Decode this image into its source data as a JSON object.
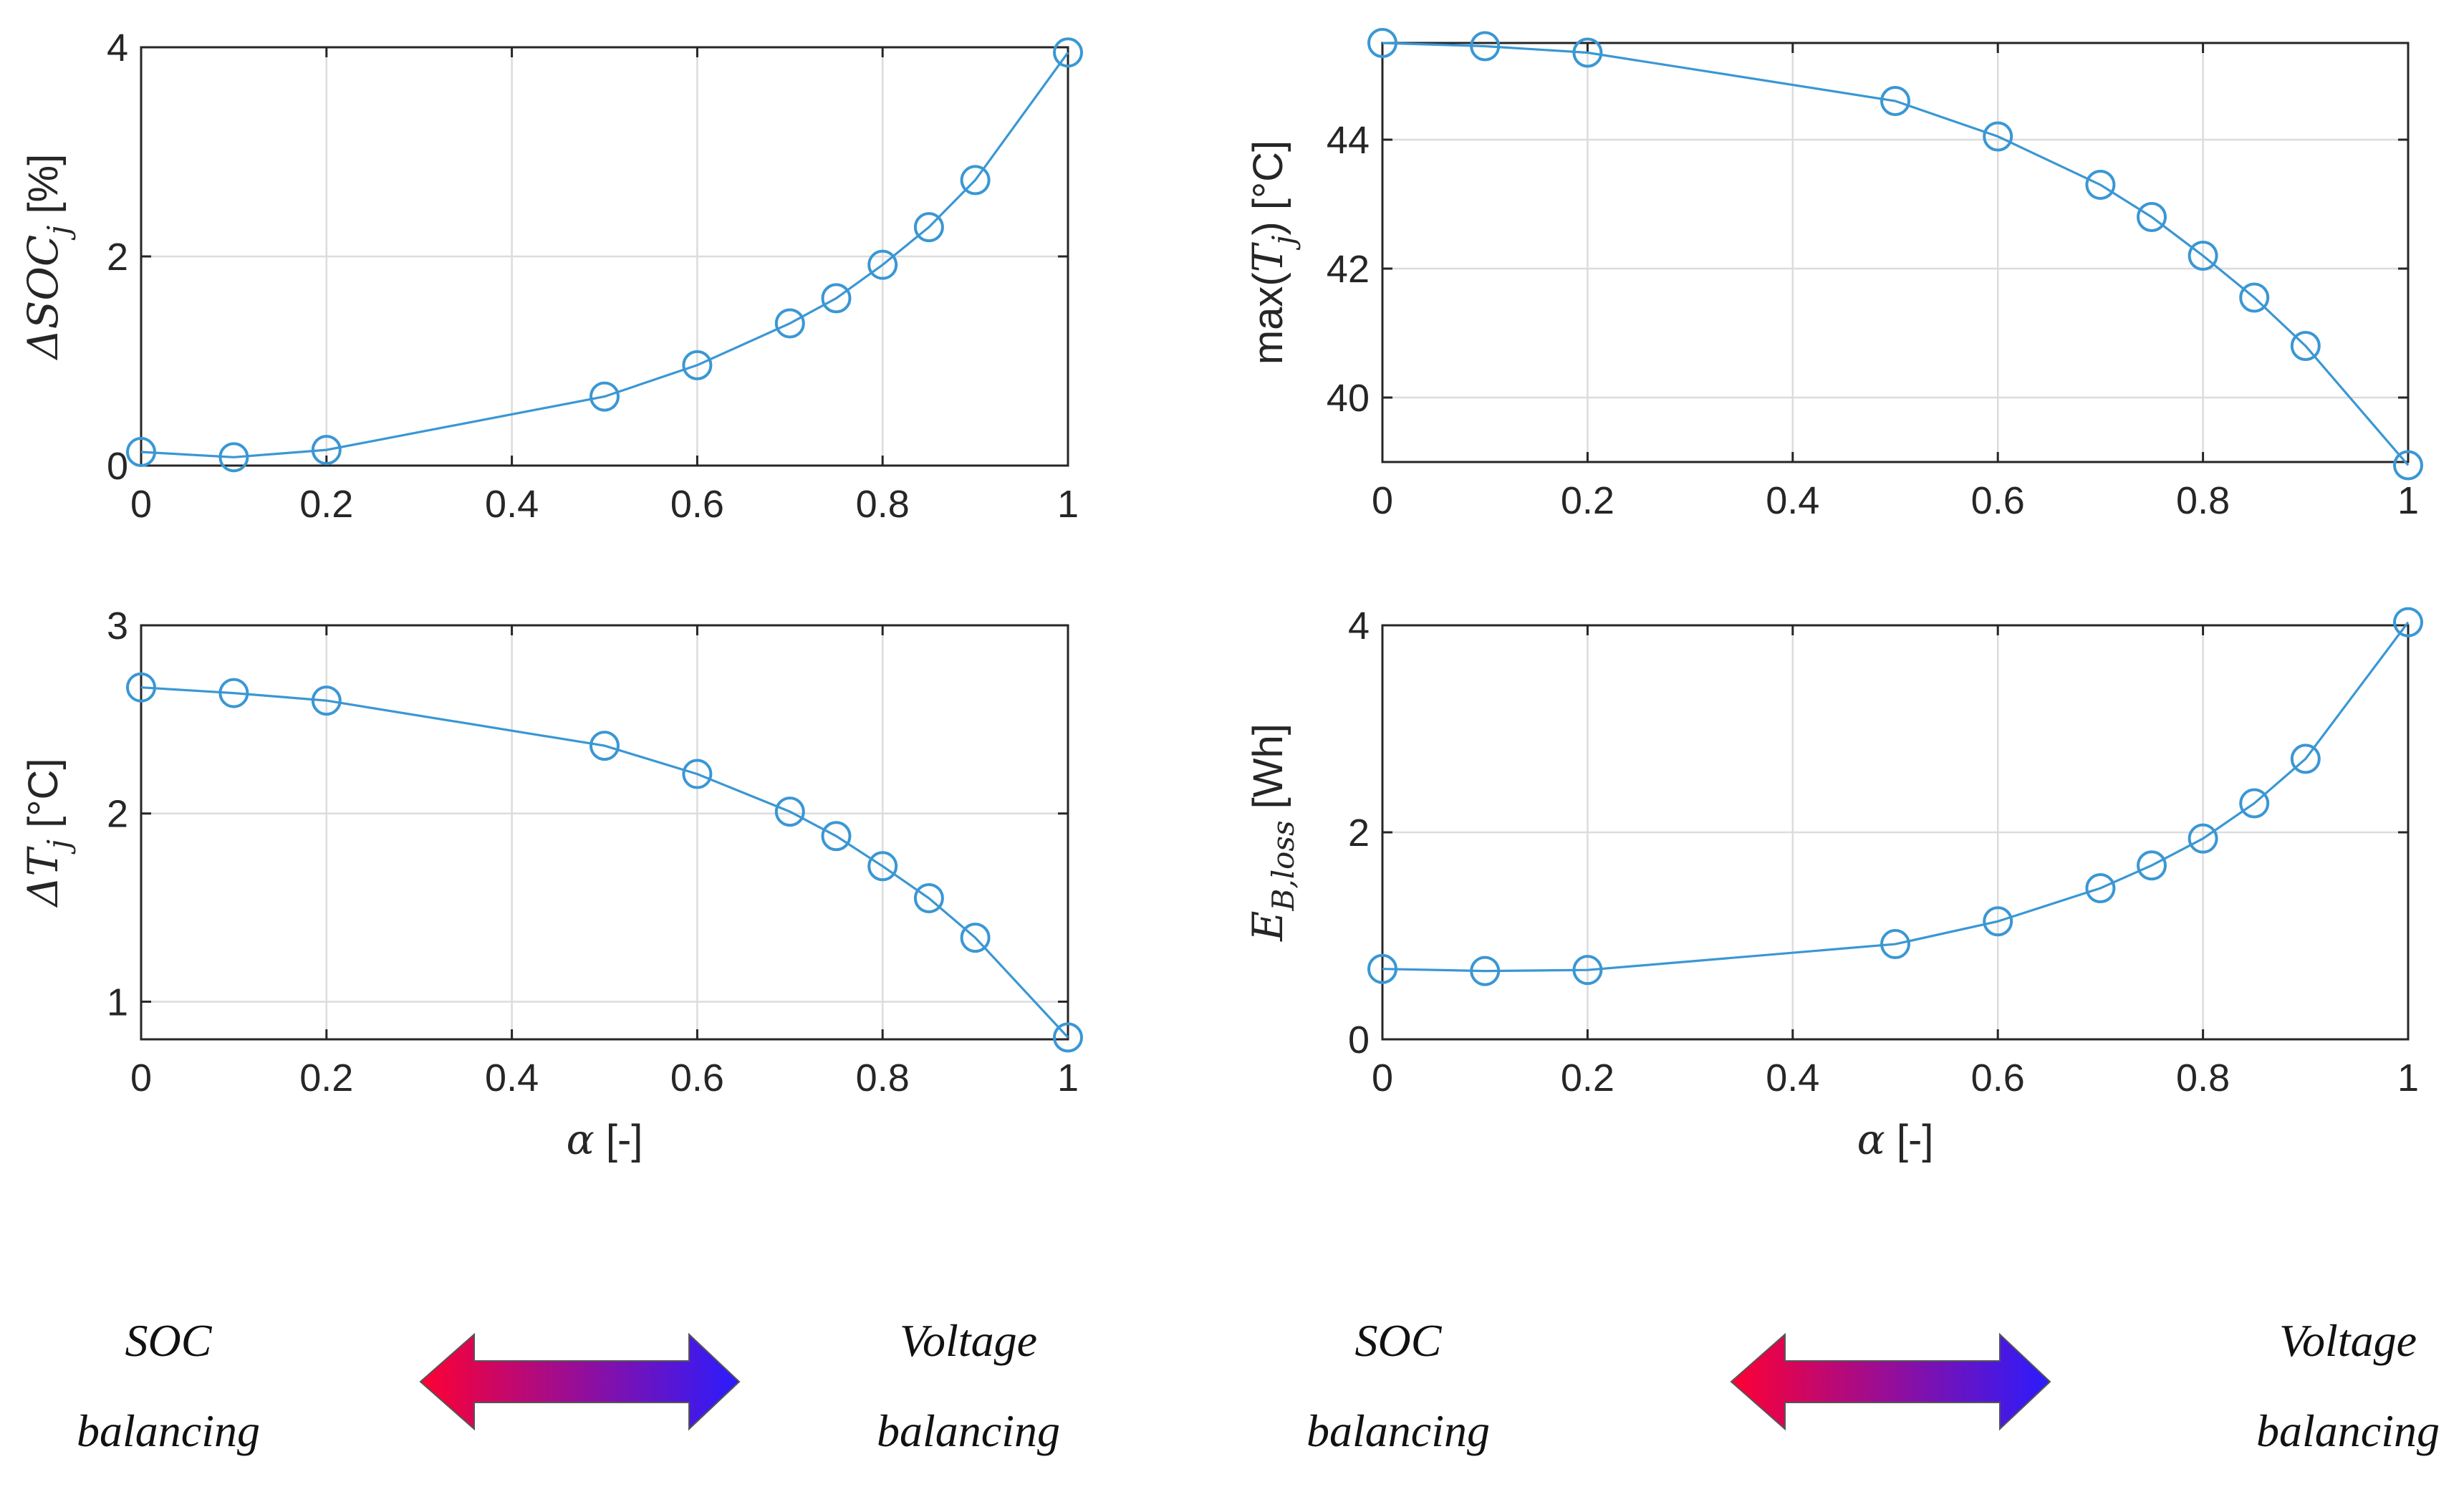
{
  "colors": {
    "series": "#3a97d4",
    "arrow_left": "#ff0033",
    "arrow_right": "#2a1cff"
  },
  "chart_data": [
    {
      "id": "dsoc",
      "type": "line",
      "ylabel_prefix": "ΔSOC",
      "ylabel_sub": "j",
      "ylabel_suffix": " [%]",
      "xlabel": "",
      "xlim": [
        0,
        1
      ],
      "ylim": [
        0,
        4
      ],
      "xticks": [
        "0",
        "0.2",
        "0.4",
        "0.6",
        "0.8",
        "1"
      ],
      "yticks": [
        "0",
        "2",
        "4"
      ],
      "x": [
        0,
        0.1,
        0.2,
        0.5,
        0.6,
        0.7,
        0.75,
        0.8,
        0.85,
        0.9,
        1
      ],
      "y": [
        0.13,
        0.08,
        0.15,
        0.66,
        0.96,
        1.36,
        1.6,
        1.92,
        2.28,
        2.73,
        3.95
      ]
    },
    {
      "id": "maxtj",
      "type": "line",
      "ylabel_prefix": "max(",
      "ylabel_sub": "j",
      "ylabel_suffix": ") [°C]",
      "ylabel_var": "T",
      "xlabel": "",
      "xlim": [
        0,
        1
      ],
      "ylim": [
        39,
        45.5
      ],
      "xticks": [
        "0",
        "0.2",
        "0.4",
        "0.6",
        "0.8",
        "1"
      ],
      "yticks": [
        "40",
        "42",
        "44"
      ],
      "x": [
        0,
        0.1,
        0.2,
        0.5,
        0.6,
        0.7,
        0.75,
        0.8,
        0.85,
        0.9,
        1
      ],
      "y": [
        45.5,
        45.45,
        45.35,
        44.6,
        44.05,
        43.3,
        42.8,
        42.2,
        41.55,
        40.8,
        38.95
      ]
    },
    {
      "id": "dtj",
      "type": "line",
      "ylabel_prefix": "Δ",
      "ylabel_var": "T",
      "ylabel_sub": "j",
      "ylabel_suffix": " [°C]",
      "xlabel": "α [-]",
      "xlim": [
        0,
        1
      ],
      "ylim": [
        0.8,
        3
      ],
      "xticks": [
        "0",
        "0.2",
        "0.4",
        "0.6",
        "0.8",
        "1"
      ],
      "yticks": [
        "1",
        "2",
        "3"
      ],
      "x": [
        0,
        0.1,
        0.2,
        0.5,
        0.6,
        0.7,
        0.75,
        0.8,
        0.85,
        0.9,
        1
      ],
      "y": [
        2.67,
        2.64,
        2.6,
        2.36,
        2.21,
        2.01,
        1.88,
        1.72,
        1.55,
        1.34,
        0.81
      ]
    },
    {
      "id": "ebloss",
      "type": "line",
      "ylabel_var": "E",
      "ylabel_sub": "B,loss",
      "ylabel_suffix": " [Wh]",
      "xlabel": "α [-]",
      "xlim": [
        0,
        1
      ],
      "ylim": [
        0,
        4
      ],
      "xticks": [
        "0",
        "0.2",
        "0.4",
        "0.6",
        "0.8",
        "1"
      ],
      "yticks": [
        "0",
        "2",
        "4"
      ],
      "x": [
        0,
        0.1,
        0.2,
        0.5,
        0.6,
        0.7,
        0.75,
        0.8,
        0.85,
        0.9,
        1
      ],
      "y": [
        0.68,
        0.66,
        0.67,
        0.92,
        1.14,
        1.46,
        1.68,
        1.94,
        2.28,
        2.71,
        4.03
      ]
    }
  ],
  "captions": [
    {
      "left_top": "SOC",
      "left_bottom": "balancing",
      "right_top": "Voltage",
      "right_bottom": "balancing"
    },
    {
      "left_top": "SOC",
      "left_bottom": "balancing",
      "right_top": "Voltage",
      "right_bottom": "balancing"
    }
  ]
}
